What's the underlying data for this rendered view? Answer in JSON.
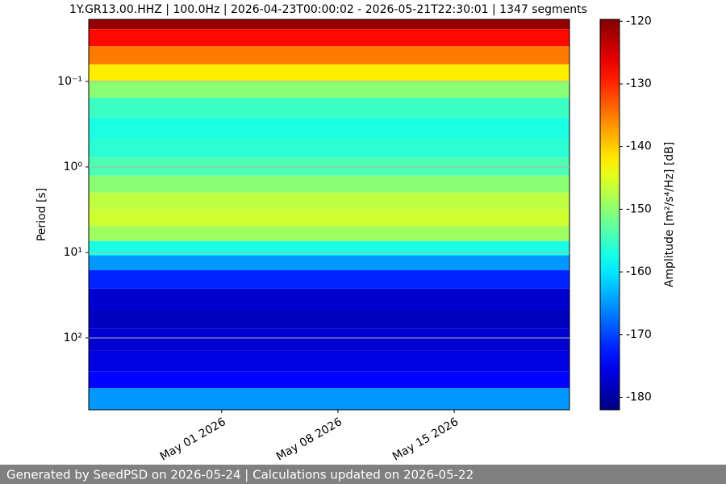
{
  "chart_data": {
    "type": "spectrogram",
    "title": "1Y.GR13.00.HHZ | 100.0Hz | 2026-04-23T00:00:02 - 2026-05-21T22:30:01 | 1347 segments",
    "ylabel": "Period [s]",
    "colorbar_label": "Amplitude [m²/s⁴/Hz] [dB]",
    "xlim": [
      "2026-04-23T00:00:02",
      "2026-05-21T22:30:01"
    ],
    "xticks": [
      {
        "value": "2026-05-01",
        "label": "May 01 2026"
      },
      {
        "value": "2026-05-08",
        "label": "May 08 2026"
      },
      {
        "value": "2026-05-15",
        "label": "May 15 2026"
      }
    ],
    "ylim": [
      0.0188,
      692
    ],
    "ylog": true,
    "yinverted": true,
    "yticks": [
      {
        "value": 0.1,
        "label": "10⁻¹"
      },
      {
        "value": 1,
        "label": "10⁰"
      },
      {
        "value": 10,
        "label": "10¹"
      },
      {
        "value": 100,
        "label": "10²"
      }
    ],
    "grid": true,
    "clim": [
      -182,
      -119.7
    ],
    "cticks": [
      -120,
      -130,
      -140,
      -150,
      -160,
      -170,
      -180
    ],
    "colormap": "jet",
    "y": [
      0.02,
      0.03,
      0.05,
      0.08,
      0.12,
      0.2,
      0.35,
      0.6,
      1.0,
      1.6,
      2.5,
      4,
      6,
      9,
      13,
      20,
      35,
      60,
      100,
      200,
      300,
      500
    ],
    "values": [
      -121,
      -128,
      -135,
      -142,
      -150,
      -155,
      -157,
      -156,
      -154,
      -150,
      -147,
      -146,
      -149,
      -157,
      -165,
      -172,
      -177,
      -178,
      -177,
      -176,
      -174,
      -165
    ]
  },
  "footer": "Generated by SeedPSD on 2026-05-24 | Calculations updated on 2026-05-22"
}
